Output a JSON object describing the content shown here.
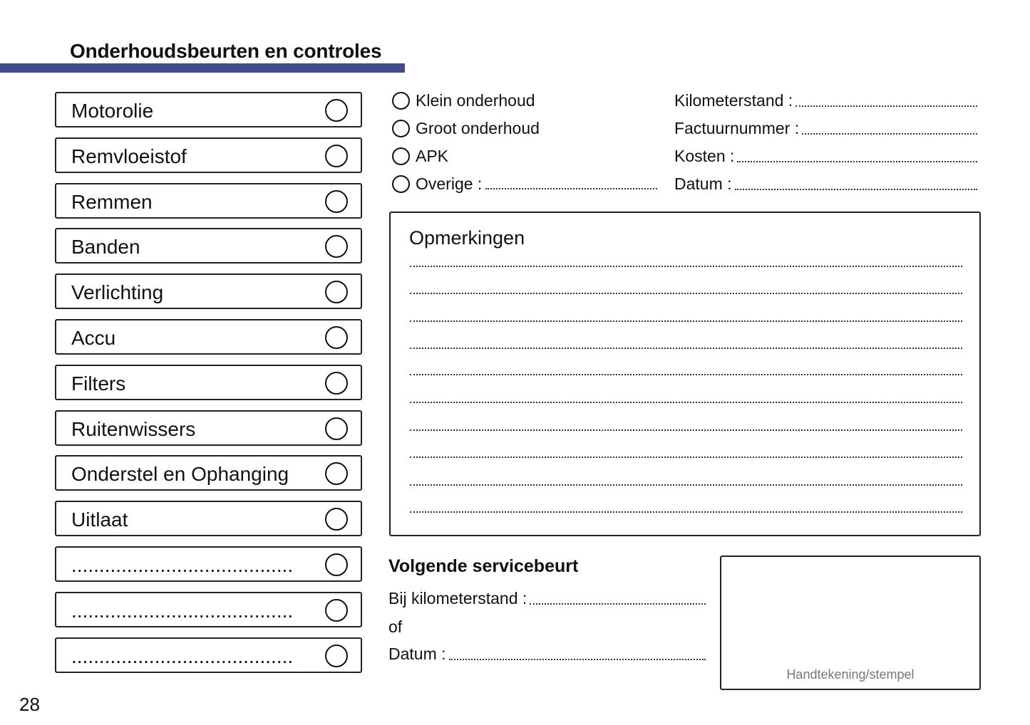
{
  "header": {
    "title": "Onderhoudsbeurten en controles",
    "accent_color": "#434a8c"
  },
  "checklist": [
    {
      "label": "Motorolie"
    },
    {
      "label": "Remvloeistof"
    },
    {
      "label": "Remmen"
    },
    {
      "label": "Banden"
    },
    {
      "label": "Verlichting"
    },
    {
      "label": "Accu"
    },
    {
      "label": "Filters"
    },
    {
      "label": "Ruitenwissers"
    },
    {
      "label": "Onderstel en Ophanging"
    },
    {
      "label": "Uitlaat"
    },
    {
      "label": "........................................"
    },
    {
      "label": "........................................"
    },
    {
      "label": "........................................"
    }
  ],
  "service_type": [
    {
      "label": "Klein onderhoud"
    },
    {
      "label": "Groot onderhoud"
    },
    {
      "label": "APK"
    },
    {
      "label": "Overige :"
    }
  ],
  "fields": [
    {
      "label": "Kilometerstand :"
    },
    {
      "label": "Factuurnummer :"
    },
    {
      "label": "Kosten :"
    },
    {
      "label": "Datum :"
    }
  ],
  "remarks": {
    "title": "Opmerkingen"
  },
  "next_service": {
    "title": "Volgende servicebeurt",
    "km_label": "Bij kilometerstand :",
    "or_label": "of",
    "date_label": "Datum :"
  },
  "stamp": {
    "label": "Handtekening/stempel"
  },
  "page_number": "28"
}
